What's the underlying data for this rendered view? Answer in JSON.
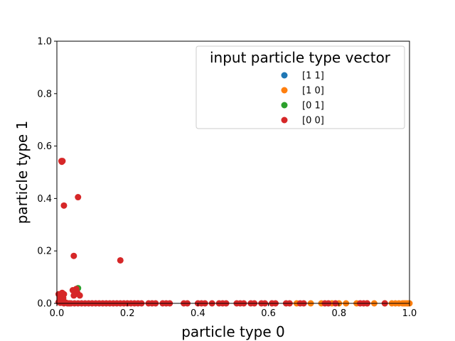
{
  "chart_data": {
    "type": "scatter",
    "title": "",
    "xlabel": "particle type 0",
    "ylabel": "particle type 1",
    "xlim": [
      0,
      1
    ],
    "ylim": [
      0,
      1
    ],
    "xticks": [
      "0.0",
      "0.2",
      "0.4",
      "0.6",
      "0.8",
      "1.0"
    ],
    "yticks": [
      "0.0",
      "0.2",
      "0.4",
      "0.6",
      "0.8",
      "1.0"
    ],
    "grid": false,
    "legend": {
      "title": "input particle type vector",
      "placement": "top-right"
    },
    "series": [
      {
        "name": "[1 1]",
        "color": "#1f77b4",
        "points": []
      },
      {
        "name": "[1 0]",
        "color": "#ff7f0e",
        "points": [
          [
            0.68,
            0.0
          ],
          [
            0.72,
            0.0
          ],
          [
            0.75,
            0.0
          ],
          [
            0.78,
            0.0
          ],
          [
            0.8,
            0.0
          ],
          [
            0.82,
            0.0
          ],
          [
            0.85,
            0.0
          ],
          [
            0.88,
            0.0
          ],
          [
            0.9,
            0.0
          ],
          [
            0.93,
            0.0
          ],
          [
            0.95,
            0.0
          ],
          [
            0.96,
            0.0
          ],
          [
            0.97,
            0.0
          ],
          [
            0.98,
            0.0
          ],
          [
            0.985,
            0.0
          ],
          [
            0.99,
            0.0
          ],
          [
            0.995,
            0.0
          ],
          [
            1.0,
            0.0
          ]
        ]
      },
      {
        "name": "[0 1]",
        "color": "#2ca02c",
        "points": [
          [
            0.06,
            0.058
          ],
          [
            0.055,
            0.05
          ]
        ]
      },
      {
        "name": "[0 0]",
        "color": "#d62728",
        "points": [
          [
            0.013,
            0.543
          ],
          [
            0.016,
            0.543
          ],
          [
            0.014,
            0.54
          ],
          [
            0.06,
            0.405
          ],
          [
            0.02,
            0.373
          ],
          [
            0.048,
            0.181
          ],
          [
            0.18,
            0.164
          ],
          [
            0.045,
            0.05
          ],
          [
            0.05,
            0.045
          ],
          [
            0.055,
            0.055
          ],
          [
            0.052,
            0.035
          ],
          [
            0.058,
            0.04
          ],
          [
            0.048,
            0.03
          ],
          [
            0.065,
            0.03
          ],
          [
            0.005,
            0.035
          ],
          [
            0.01,
            0.03
          ],
          [
            0.015,
            0.04
          ],
          [
            0.02,
            0.035
          ],
          [
            0.008,
            0.02
          ],
          [
            0.012,
            0.015
          ],
          [
            0.018,
            0.02
          ],
          [
            0.005,
            0.005
          ],
          [
            0.01,
            0.002
          ],
          [
            0.015,
            0.005
          ],
          [
            0.02,
            0.0
          ],
          [
            0.025,
            0.003
          ],
          [
            0.03,
            0.0
          ],
          [
            0.035,
            0.0
          ],
          [
            0.04,
            0.0
          ],
          [
            0.05,
            0.0
          ],
          [
            0.06,
            0.0
          ],
          [
            0.07,
            0.0
          ],
          [
            0.08,
            0.0
          ],
          [
            0.09,
            0.0
          ],
          [
            0.1,
            0.0
          ],
          [
            0.11,
            0.0
          ],
          [
            0.12,
            0.0
          ],
          [
            0.13,
            0.0
          ],
          [
            0.14,
            0.0
          ],
          [
            0.15,
            0.0
          ],
          [
            0.16,
            0.0
          ],
          [
            0.17,
            0.0
          ],
          [
            0.18,
            0.0
          ],
          [
            0.19,
            0.0
          ],
          [
            0.2,
            0.0
          ],
          [
            0.21,
            0.0
          ],
          [
            0.22,
            0.0
          ],
          [
            0.23,
            0.0
          ],
          [
            0.24,
            0.0
          ],
          [
            0.26,
            0.0
          ],
          [
            0.27,
            0.0
          ],
          [
            0.28,
            0.0
          ],
          [
            0.3,
            0.0
          ],
          [
            0.31,
            0.0
          ],
          [
            0.32,
            0.0
          ],
          [
            0.36,
            0.0
          ],
          [
            0.37,
            0.0
          ],
          [
            0.4,
            0.0
          ],
          [
            0.41,
            0.0
          ],
          [
            0.42,
            0.0
          ],
          [
            0.44,
            0.0
          ],
          [
            0.46,
            0.0
          ],
          [
            0.47,
            0.0
          ],
          [
            0.48,
            0.0
          ],
          [
            0.51,
            0.0
          ],
          [
            0.52,
            0.0
          ],
          [
            0.53,
            0.0
          ],
          [
            0.55,
            0.0
          ],
          [
            0.56,
            0.0
          ],
          [
            0.58,
            0.0
          ],
          [
            0.59,
            0.0
          ],
          [
            0.61,
            0.0
          ],
          [
            0.62,
            0.0
          ],
          [
            0.65,
            0.0
          ],
          [
            0.66,
            0.0
          ],
          [
            0.69,
            0.0
          ],
          [
            0.7,
            0.0
          ],
          [
            0.76,
            0.0
          ],
          [
            0.77,
            0.0
          ],
          [
            0.79,
            0.0
          ],
          [
            0.86,
            0.0
          ],
          [
            0.87,
            0.0
          ],
          [
            0.88,
            0.0
          ],
          [
            0.93,
            0.0
          ]
        ]
      }
    ]
  }
}
